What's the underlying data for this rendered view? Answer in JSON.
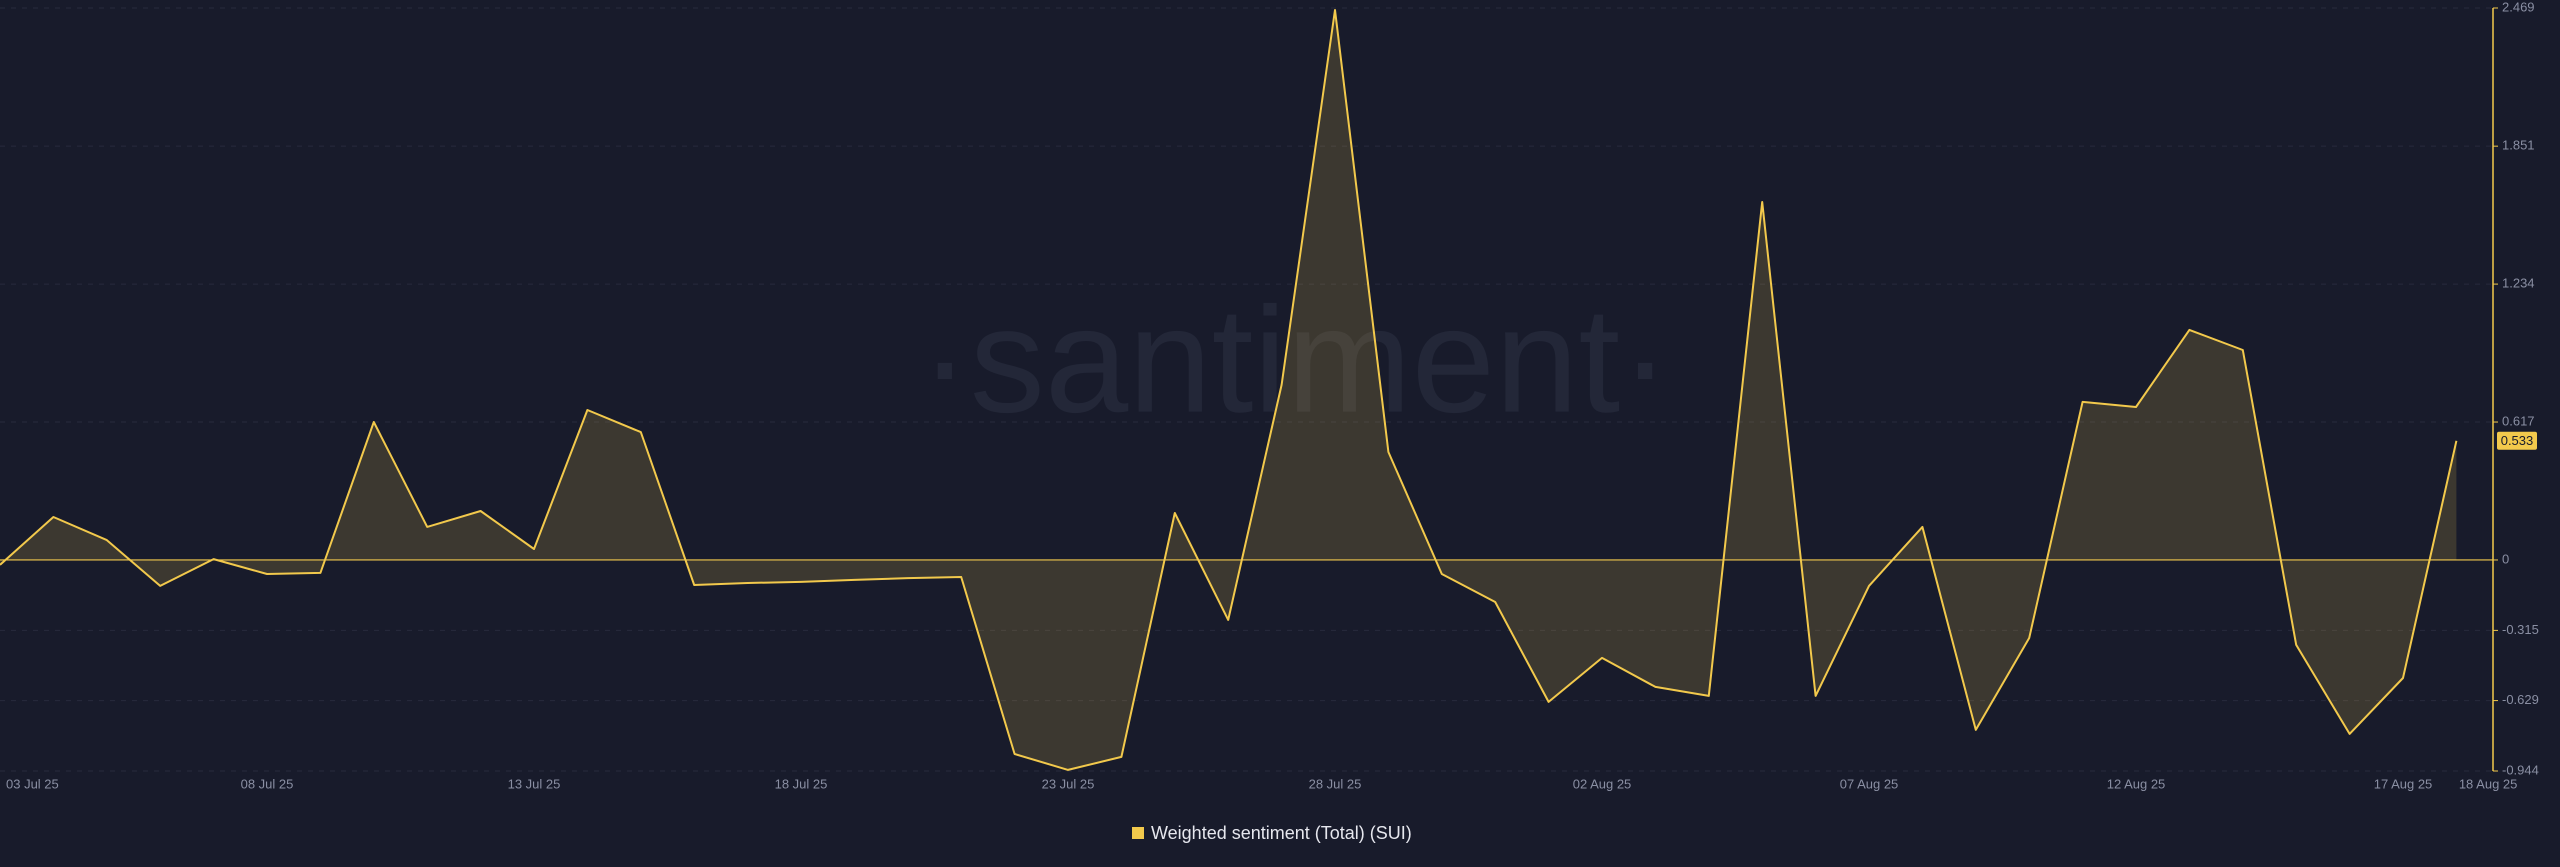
{
  "chart_data": {
    "type": "area",
    "watermark": "·santiment·",
    "categories": [
      "03 Jul 25",
      null,
      null,
      null,
      null,
      "08 Jul 25",
      null,
      null,
      null,
      null,
      "13 Jul 25",
      null,
      null,
      null,
      null,
      "18 Jul 25",
      null,
      null,
      null,
      null,
      "23 Jul 25",
      null,
      null,
      null,
      null,
      "28 Jul 25",
      null,
      null,
      null,
      null,
      "02 Aug 25",
      null,
      null,
      null,
      null,
      "07 Aug 25",
      null,
      null,
      null,
      null,
      "12 Aug 25",
      null,
      null,
      null,
      null,
      "17 Aug 25",
      "18 Aug 25"
    ],
    "series": [
      {
        "name": "Weighted sentiment (Total) (SUI)",
        "color": "#f2c94c",
        "values": [
          -0.022,
          0.192,
          0.089,
          -0.116,
          0.004,
          -0.063,
          -0.058,
          0.617,
          0.148,
          0.219,
          0.049,
          0.671,
          0.572,
          -0.112,
          -0.103,
          -0.098,
          -0.089,
          -0.081,
          -0.076,
          -0.868,
          -0.939,
          -0.881,
          0.21,
          -0.268,
          0.783,
          2.46,
          0.483,
          -0.063,
          -0.188,
          -0.635,
          -0.438,
          -0.568,
          -0.608,
          1.601,
          -0.608,
          -0.116,
          0.148,
          -0.76,
          -0.349,
          0.707,
          0.684,
          1.029,
          0.939,
          -0.38,
          -0.778,
          -0.528,
          0.533
        ]
      }
    ],
    "ylim": [
      -0.944,
      2.469
    ],
    "yticks": [
      -0.944,
      -0.629,
      -0.315,
      0,
      0.617,
      1.234,
      1.851,
      2.469
    ],
    "grid": true
  }
}
